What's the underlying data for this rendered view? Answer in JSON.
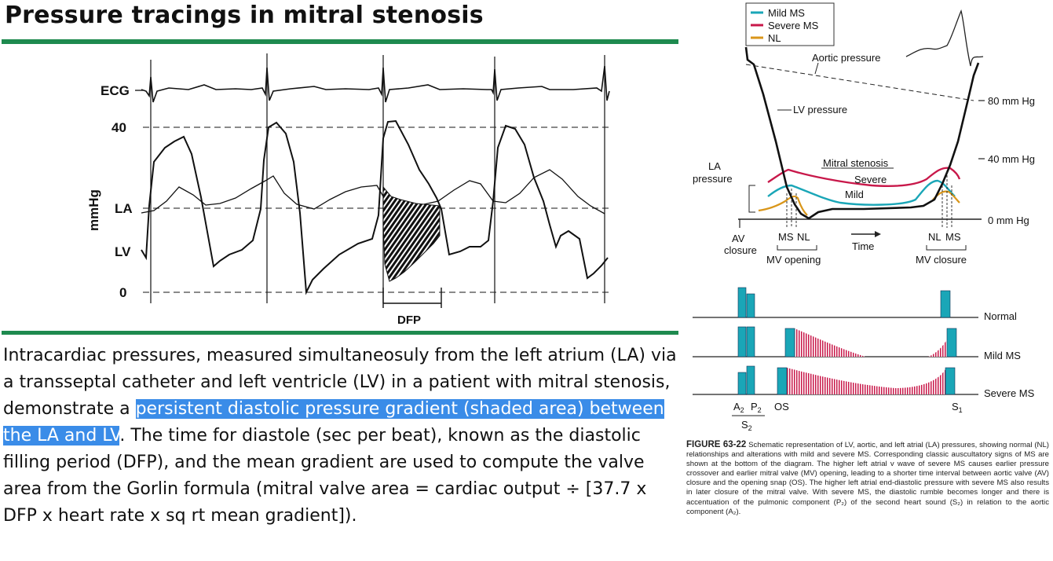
{
  "title": "Pressure tracings in mitral stenosis",
  "tracing": {
    "labels": {
      "ecg": "ECG",
      "p40": "40",
      "la": "LA",
      "lv": "LV",
      "zero": "0",
      "yaxis": "mmHg",
      "dfp": "DFP"
    }
  },
  "description": {
    "before": "Intracardiac pressures, measured simultaneosuly from the left atrium (LA) via a transseptal catheter and left ventricle (LV) in a patient with mitral stenosis, demonstrate a ",
    "highlighted": "persistent diastolic pressure gradient (shaded area) between the LA and LV",
    "after": ". The time for diastole (sec per beat), known as the diastolic filling period (DFP), and the mean gradient are used to compute the valve area from the Gorlin formula (mitral valve area = cardiac output ÷ [37.7 x DFP x heart rate x sq rt mean gradient])."
  },
  "schematic": {
    "legend": [
      {
        "label": "Mild MS",
        "color": "#1aa6b7"
      },
      {
        "label": "Severe MS",
        "color": "#c8184a"
      },
      {
        "label": "NL",
        "color": "#d9961a"
      }
    ],
    "labels": {
      "aortic": "Aortic pressure",
      "lv": "LV pressure",
      "mm80": "80 mm Hg",
      "mm40": "40 mm Hg",
      "mm0": "0 mm Hg",
      "la1": "LA",
      "la2": "pressure",
      "ms_title": "Mitral stenosis",
      "severe": "Severe",
      "mild": "Mild",
      "av1": "AV",
      "av2": "closure",
      "ms_left": "MS",
      "nl_left": "NL",
      "time": "Time",
      "nl_right": "NL",
      "ms_right": "MS",
      "mv_opening": "MV opening",
      "mv_closure": "MV closure"
    },
    "sound_rows": [
      "Normal",
      "Mild MS",
      "Severe MS"
    ],
    "sound_labels": {
      "a2": "A",
      "a2_sub": "2",
      "p2": "P",
      "p2_sub": "2",
      "s2": "S",
      "s2_sub": "2",
      "os": "OS",
      "s1": "S",
      "s1_sub": "1"
    }
  },
  "figure_caption": {
    "label": "FIGURE 63-22",
    "text": "Schematic representation of LV, aortic, and left atrial (LA) pressures, showing normal (NL) relationships and alterations with mild and severe MS. Corresponding classic auscultatory signs of MS are shown at the bottom of the diagram. The higher left atrial v wave of severe MS causes earlier pressure crossover and earlier mitral valve (MV) opening, leading to a shorter time interval between aortic valve (AV) closure and the opening snap (OS). The higher left atrial end-diastolic pressure with severe MS also results in later closure of the mitral valve. With severe MS, the diastolic rumble becomes longer and there is accentuation of the pulmonic component (P₂) of the second heart sound (S₂) in relation to the aortic component (A₂)."
  }
}
